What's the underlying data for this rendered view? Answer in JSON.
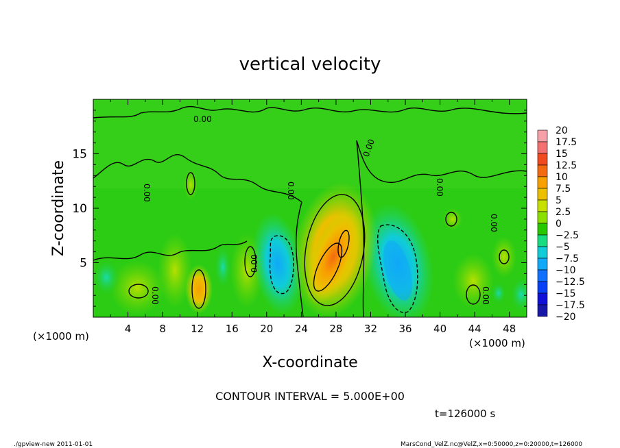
{
  "chart_data": {
    "type": "heatmap",
    "title": "vertical velocity",
    "xlabel": "X-coordinate",
    "ylabel": "Z-coordinate",
    "x_unit_note": "(×1000 m)",
    "x_unit_note_right": "(×1000 m)",
    "xlim": [
      0,
      50
    ],
    "ylim": [
      0,
      20
    ],
    "x_ticks": [
      "4",
      "8",
      "12",
      "16",
      "20",
      "24",
      "28",
      "32",
      "36",
      "40",
      "44",
      "48"
    ],
    "y_ticks": [
      "5",
      "10",
      "15"
    ],
    "contour_interval_text": "CONTOUR INTERVAL = 5.000E+00",
    "time_text": "t=126000 s",
    "contour_labels": [
      "0.00",
      "0.00",
      "0.00",
      "0.00",
      "0.00",
      "0.00",
      "0.00",
      "0.00",
      "0.00"
    ],
    "colorbar": {
      "labels": [
        "20",
        "17.5",
        "15",
        "12.5",
        "10",
        "7.5",
        "5",
        "2.5",
        "0",
        "−2.5",
        "−5",
        "−7.5",
        "−10",
        "−12.5",
        "−15",
        "−17.5",
        "−20"
      ],
      "colors": [
        "#f6a0a8",
        "#f47070",
        "#f04a1e",
        "#f36a10",
        "#f8a000",
        "#ecc000",
        "#c8e000",
        "#8ce000",
        "#28c800",
        "#18dc80",
        "#10ccd8",
        "#10a8f8",
        "#1070ff",
        "#0840f8",
        "#1010d8",
        "#1818a8",
        "#6010c0"
      ]
    },
    "features": [
      {
        "name": "updraft-core",
        "x_center": 27.6,
        "z_center": 5.6,
        "peak": 12.5
      },
      {
        "name": "updraft-left",
        "x_center": 12.3,
        "z_center": 2.6,
        "peak": 10
      },
      {
        "name": "downdraft-right",
        "x_center": 35.2,
        "z_center": 4.8,
        "peak": -10
      },
      {
        "name": "downdraft-left",
        "x_center": 21.2,
        "z_center": 4.6,
        "peak": -7.5
      }
    ]
  },
  "footer": {
    "left": "./gpview-new   2011-01-01",
    "right": "MarsCond_VelZ.nc@VelZ,x=0:50000,z=0:20000,t=126000"
  }
}
